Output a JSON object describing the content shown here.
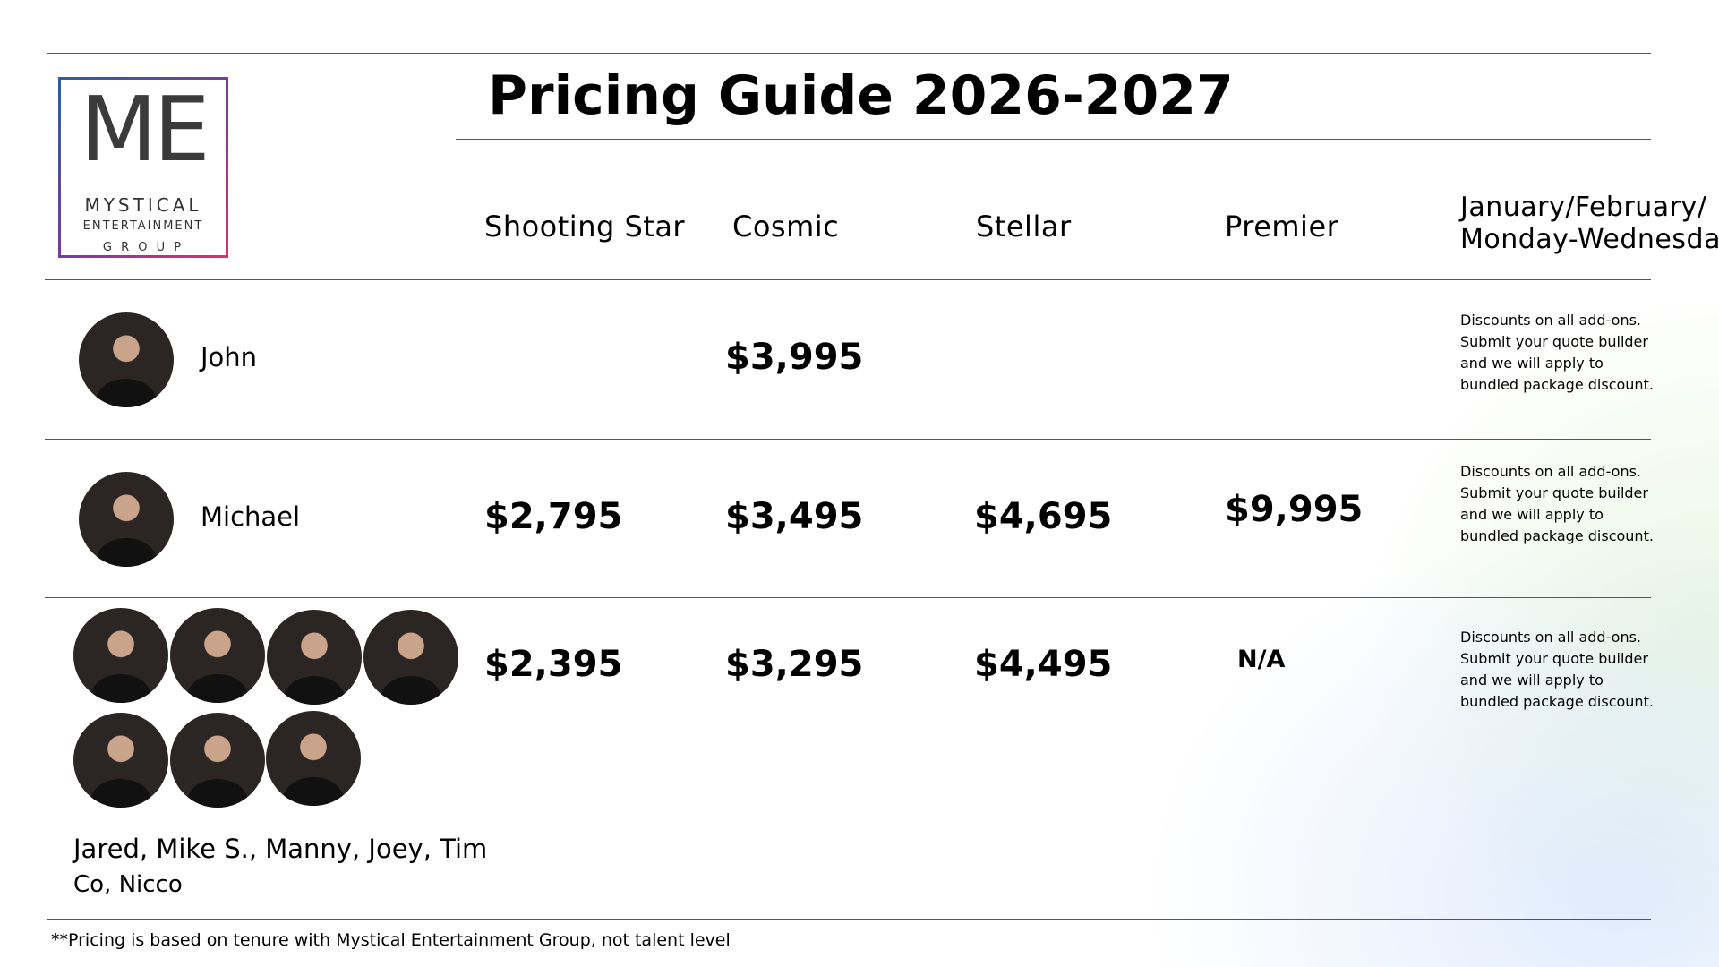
{
  "logo": {
    "monogram": "ME",
    "lines": [
      "MYSTICAL",
      "ENTERTAINMENT",
      "G R O U P"
    ]
  },
  "header": {
    "title": "Pricing Guide 2026-2027"
  },
  "table": {
    "columns": [
      "Shooting Star",
      "Cosmic",
      "Stellar",
      "Premier"
    ],
    "note_header": [
      "January/February/",
      "Monday-Wednesday"
    ],
    "rows": [
      {
        "name_lines": [
          "John"
        ],
        "cells": [
          null,
          "$3,995",
          null,
          null
        ],
        "note": [
          "Discounts on all add-ons.",
          "Submit your quote builder",
          "and we will apply to",
          "bundled package discount."
        ]
      },
      {
        "name_lines": [
          "Michael"
        ],
        "cells": [
          "$2,795",
          "$3,495",
          "$4,695",
          "$9,995"
        ],
        "note": [
          "Discounts on all add-ons.",
          "Submit your quote builder",
          "and we will apply to",
          "bundled package discount."
        ]
      },
      {
        "name_lines": [
          "Jared, Mike S., Manny, Joey, Tim",
          "Co, Nicco"
        ],
        "cells": [
          "$2,395",
          "$3,295",
          "$4,495",
          "N/A"
        ],
        "note": [
          "Discounts on all add-ons.",
          "Submit your quote builder",
          "and we will apply to",
          "bundled package discount."
        ]
      }
    ]
  },
  "footnote": "**Pricing is based on tenure with Mystical Entertainment Group, not talent level"
}
